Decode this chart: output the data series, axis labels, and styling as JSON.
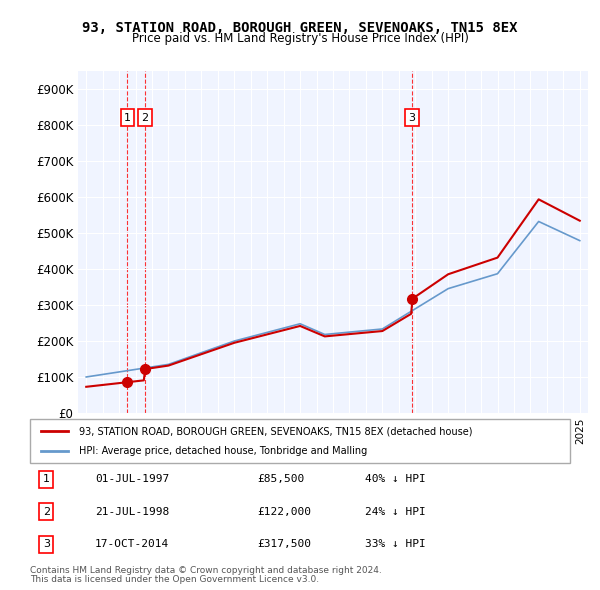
{
  "title": "93, STATION ROAD, BOROUGH GREEN, SEVENOAKS, TN15 8EX",
  "subtitle": "Price paid vs. HM Land Registry's House Price Index (HPI)",
  "property_color": "#cc0000",
  "hpi_color": "#6699cc",
  "background_color": "#f0f4ff",
  "plot_bg_color": "#f0f4ff",
  "purchases": [
    {
      "label": "1",
      "date_num": 1997.5,
      "price": 85500,
      "note": "01-JUL-1997",
      "price_str": "£85,500",
      "hpi_note": "40% ↓ HPI"
    },
    {
      "label": "2",
      "date_num": 1998.55,
      "price": 122000,
      "note": "21-JUL-1998",
      "price_str": "£122,000",
      "hpi_note": "24% ↓ HPI"
    },
    {
      "label": "3",
      "date_num": 2014.8,
      "price": 317500,
      "note": "17-OCT-2014",
      "price_str": "£317,500",
      "hpi_note": "33% ↓ HPI"
    }
  ],
  "xlim": [
    1994.5,
    2025.5
  ],
  "ylim": [
    0,
    950000
  ],
  "yticks": [
    0,
    100000,
    200000,
    300000,
    400000,
    500000,
    600000,
    700000,
    800000,
    900000
  ],
  "ytick_labels": [
    "£0",
    "£100K",
    "£200K",
    "£300K",
    "£400K",
    "£500K",
    "£600K",
    "£700K",
    "£800K",
    "£900K"
  ],
  "legend_property": "93, STATION ROAD, BOROUGH GREEN, SEVENOAKS, TN15 8EX (detached house)",
  "legend_hpi": "HPI: Average price, detached house, Tonbridge and Malling",
  "footnote1": "Contains HM Land Registry data © Crown copyright and database right 2024.",
  "footnote2": "This data is licensed under the Open Government Licence v3.0."
}
